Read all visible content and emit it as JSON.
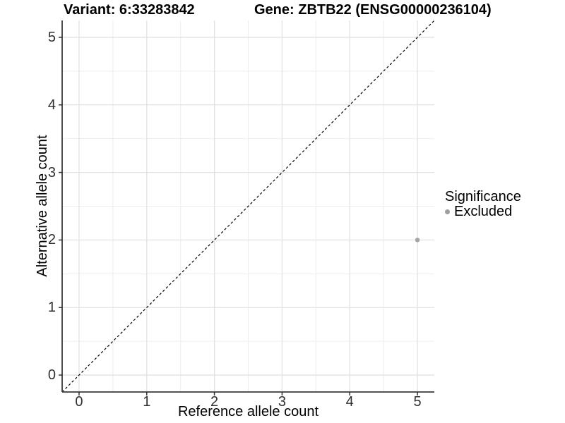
{
  "chart_data": {
    "type": "scatter",
    "title_left": "Variant: 6:33283842",
    "title_right": "Gene: ZBTB22 (ENSG00000236104)",
    "xlabel": "Reference allele count",
    "ylabel": "Alternative allele count",
    "xlim": [
      -0.25,
      5.25
    ],
    "ylim": [
      -0.25,
      5.25
    ],
    "x_ticks": [
      0,
      1,
      2,
      3,
      4,
      5
    ],
    "y_ticks": [
      0,
      1,
      2,
      3,
      4,
      5
    ],
    "grid": {
      "major": true,
      "minor": true
    },
    "reference_line": {
      "style": "dashed",
      "slope": 1,
      "intercept": 0,
      "from": [
        -0.25,
        -0.25
      ],
      "to": [
        5.25,
        5.25
      ],
      "color": "#000000"
    },
    "series": [
      {
        "name": "Excluded",
        "color": "#A3A3A3",
        "point_radius": 3.2,
        "points": [
          {
            "x": 5,
            "y": 2
          }
        ]
      }
    ],
    "legend": {
      "title": "Significance",
      "position": "right",
      "entries": [
        {
          "label": "Excluded",
          "color": "#9E9E9E"
        }
      ]
    },
    "style": {
      "background": "#FFFFFF",
      "grid_major_color": "#E2E2E2",
      "grid_minor_color": "#EEEEEE",
      "axis_line_color": "#3A3A3A",
      "tick_color": "#333333",
      "text_color": "#000000"
    }
  }
}
